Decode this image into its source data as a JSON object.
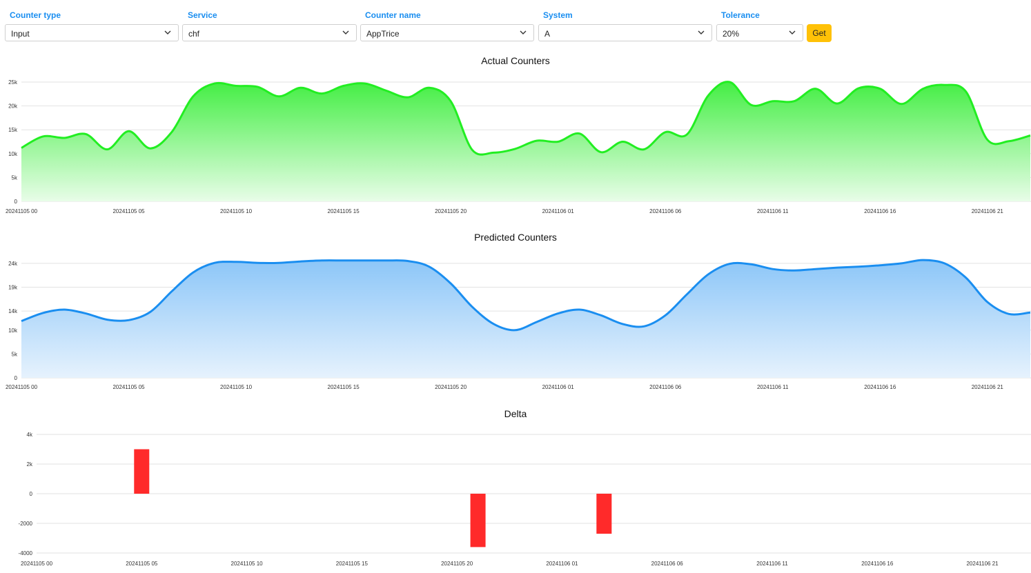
{
  "filters": {
    "counter_type": {
      "label": "Counter type",
      "value": "Input"
    },
    "service": {
      "label": "Service",
      "value": "chf"
    },
    "counter_name": {
      "label": "Counter name",
      "value": "AppTrice"
    },
    "system": {
      "label": "System",
      "value": "A"
    },
    "tolerance": {
      "label": "Tolerance",
      "value": "20%"
    },
    "get_label": "Get"
  },
  "colors": {
    "accent": "#1a8ef0",
    "button": "#ffc107",
    "actual": "#22ee22",
    "predicted": "#1a8ef0",
    "delta": "#ff2a2a"
  },
  "chart_data": [
    {
      "type": "area",
      "title": "Actual Counters",
      "ylim": [
        0,
        25000
      ],
      "yticks": [
        0,
        5000,
        10000,
        15000,
        20000,
        25000
      ],
      "yticklabels": [
        "0",
        "5k",
        "10k",
        "15k",
        "20k",
        "25k"
      ],
      "xlim": [
        0,
        47
      ],
      "xticks": [
        0,
        5,
        10,
        15,
        20,
        25,
        30,
        35,
        40,
        45
      ],
      "xticklabels": [
        "20241105 00",
        "20241105 05",
        "20241105 10",
        "20241105 15",
        "20241105 20",
        "20241106 01",
        "20241106 06",
        "20241106 11",
        "20241106 16",
        "20241106 21"
      ],
      "grid": true,
      "series": [
        {
          "x": [
            0,
            1,
            2,
            3,
            4,
            5,
            6,
            7,
            8,
            9,
            10,
            11,
            12,
            13,
            14,
            15,
            16,
            17,
            18,
            19,
            20,
            21,
            22,
            23,
            24,
            25,
            26,
            27,
            28,
            29,
            30,
            31,
            32,
            33,
            34,
            35,
            36,
            37,
            38,
            39,
            40,
            41,
            42,
            43,
            44,
            45,
            46,
            47
          ],
          "values": [
            11200,
            13600,
            13300,
            14100,
            10900,
            14700,
            11100,
            14500,
            22000,
            24700,
            24200,
            24000,
            22000,
            23800,
            22600,
            24200,
            24700,
            23200,
            21800,
            23800,
            21000,
            10800,
            10200,
            11000,
            12700,
            12500,
            14200,
            10300,
            12500,
            10900,
            14500,
            14000,
            22200,
            25000,
            20200,
            21000,
            21000,
            23600,
            20500,
            23700,
            23600,
            20400,
            23600,
            24400,
            23000,
            12900,
            12600,
            13800
          ]
        }
      ]
    },
    {
      "type": "area",
      "title": "Predicted Counters",
      "ylim": [
        0,
        25000
      ],
      "yticks": [
        0,
        5000,
        10000,
        14000,
        19000,
        24000
      ],
      "yticklabels": [
        "0",
        "5k",
        "10k",
        "14k",
        "19k",
        "24k"
      ],
      "xlim": [
        0,
        47
      ],
      "xticks": [
        0,
        5,
        10,
        15,
        20,
        25,
        30,
        35,
        40,
        45
      ],
      "xticklabels": [
        "20241105 00",
        "20241105 05",
        "20241105 10",
        "20241105 15",
        "20241105 20",
        "20241106 01",
        "20241106 06",
        "20241106 11",
        "20241106 16",
        "20241106 21"
      ],
      "grid": true,
      "series": [
        {
          "x": [
            0,
            1,
            2,
            3,
            4,
            5,
            6,
            7,
            8,
            9,
            10,
            11,
            12,
            13,
            14,
            15,
            16,
            17,
            18,
            19,
            20,
            21,
            22,
            23,
            24,
            25,
            26,
            27,
            28,
            29,
            30,
            31,
            32,
            33,
            34,
            35,
            36,
            37,
            38,
            39,
            40,
            41,
            42,
            43,
            44,
            45,
            46,
            47
          ],
          "values": [
            11900,
            13600,
            14300,
            13500,
            12200,
            12100,
            13800,
            18100,
            22100,
            24100,
            24300,
            24100,
            24100,
            24400,
            24600,
            24600,
            24600,
            24600,
            24500,
            23300,
            19800,
            14900,
            11300,
            10000,
            11700,
            13500,
            14300,
            13100,
            11300,
            10800,
            13100,
            17500,
            21700,
            23900,
            23800,
            22800,
            22500,
            22800,
            23100,
            23300,
            23600,
            24000,
            24700,
            24000,
            21000,
            15900,
            13400,
            13700
          ]
        }
      ]
    },
    {
      "type": "bar",
      "title": "Delta",
      "ylim": [
        -4000,
        4000
      ],
      "yticks": [
        -4000,
        -2000,
        0,
        2000,
        4000
      ],
      "yticklabels": [
        "-4000",
        "-2000",
        "0",
        "2k",
        "4k"
      ],
      "xlim": [
        0,
        46
      ],
      "xticks": [
        0,
        5,
        10,
        15,
        20,
        25,
        30,
        35,
        40,
        45
      ],
      "xticklabels": [
        "20241105 00",
        "20241105 05",
        "20241105 10",
        "20241105 15",
        "20241105 20",
        "20241106 01",
        "20241106 06",
        "20241106 11",
        "20241106 16",
        "20241106 21"
      ],
      "grid": true,
      "series": [
        {
          "x": [
            5,
            21,
            27
          ],
          "values": [
            3000,
            -3600,
            -2700
          ]
        }
      ]
    }
  ]
}
